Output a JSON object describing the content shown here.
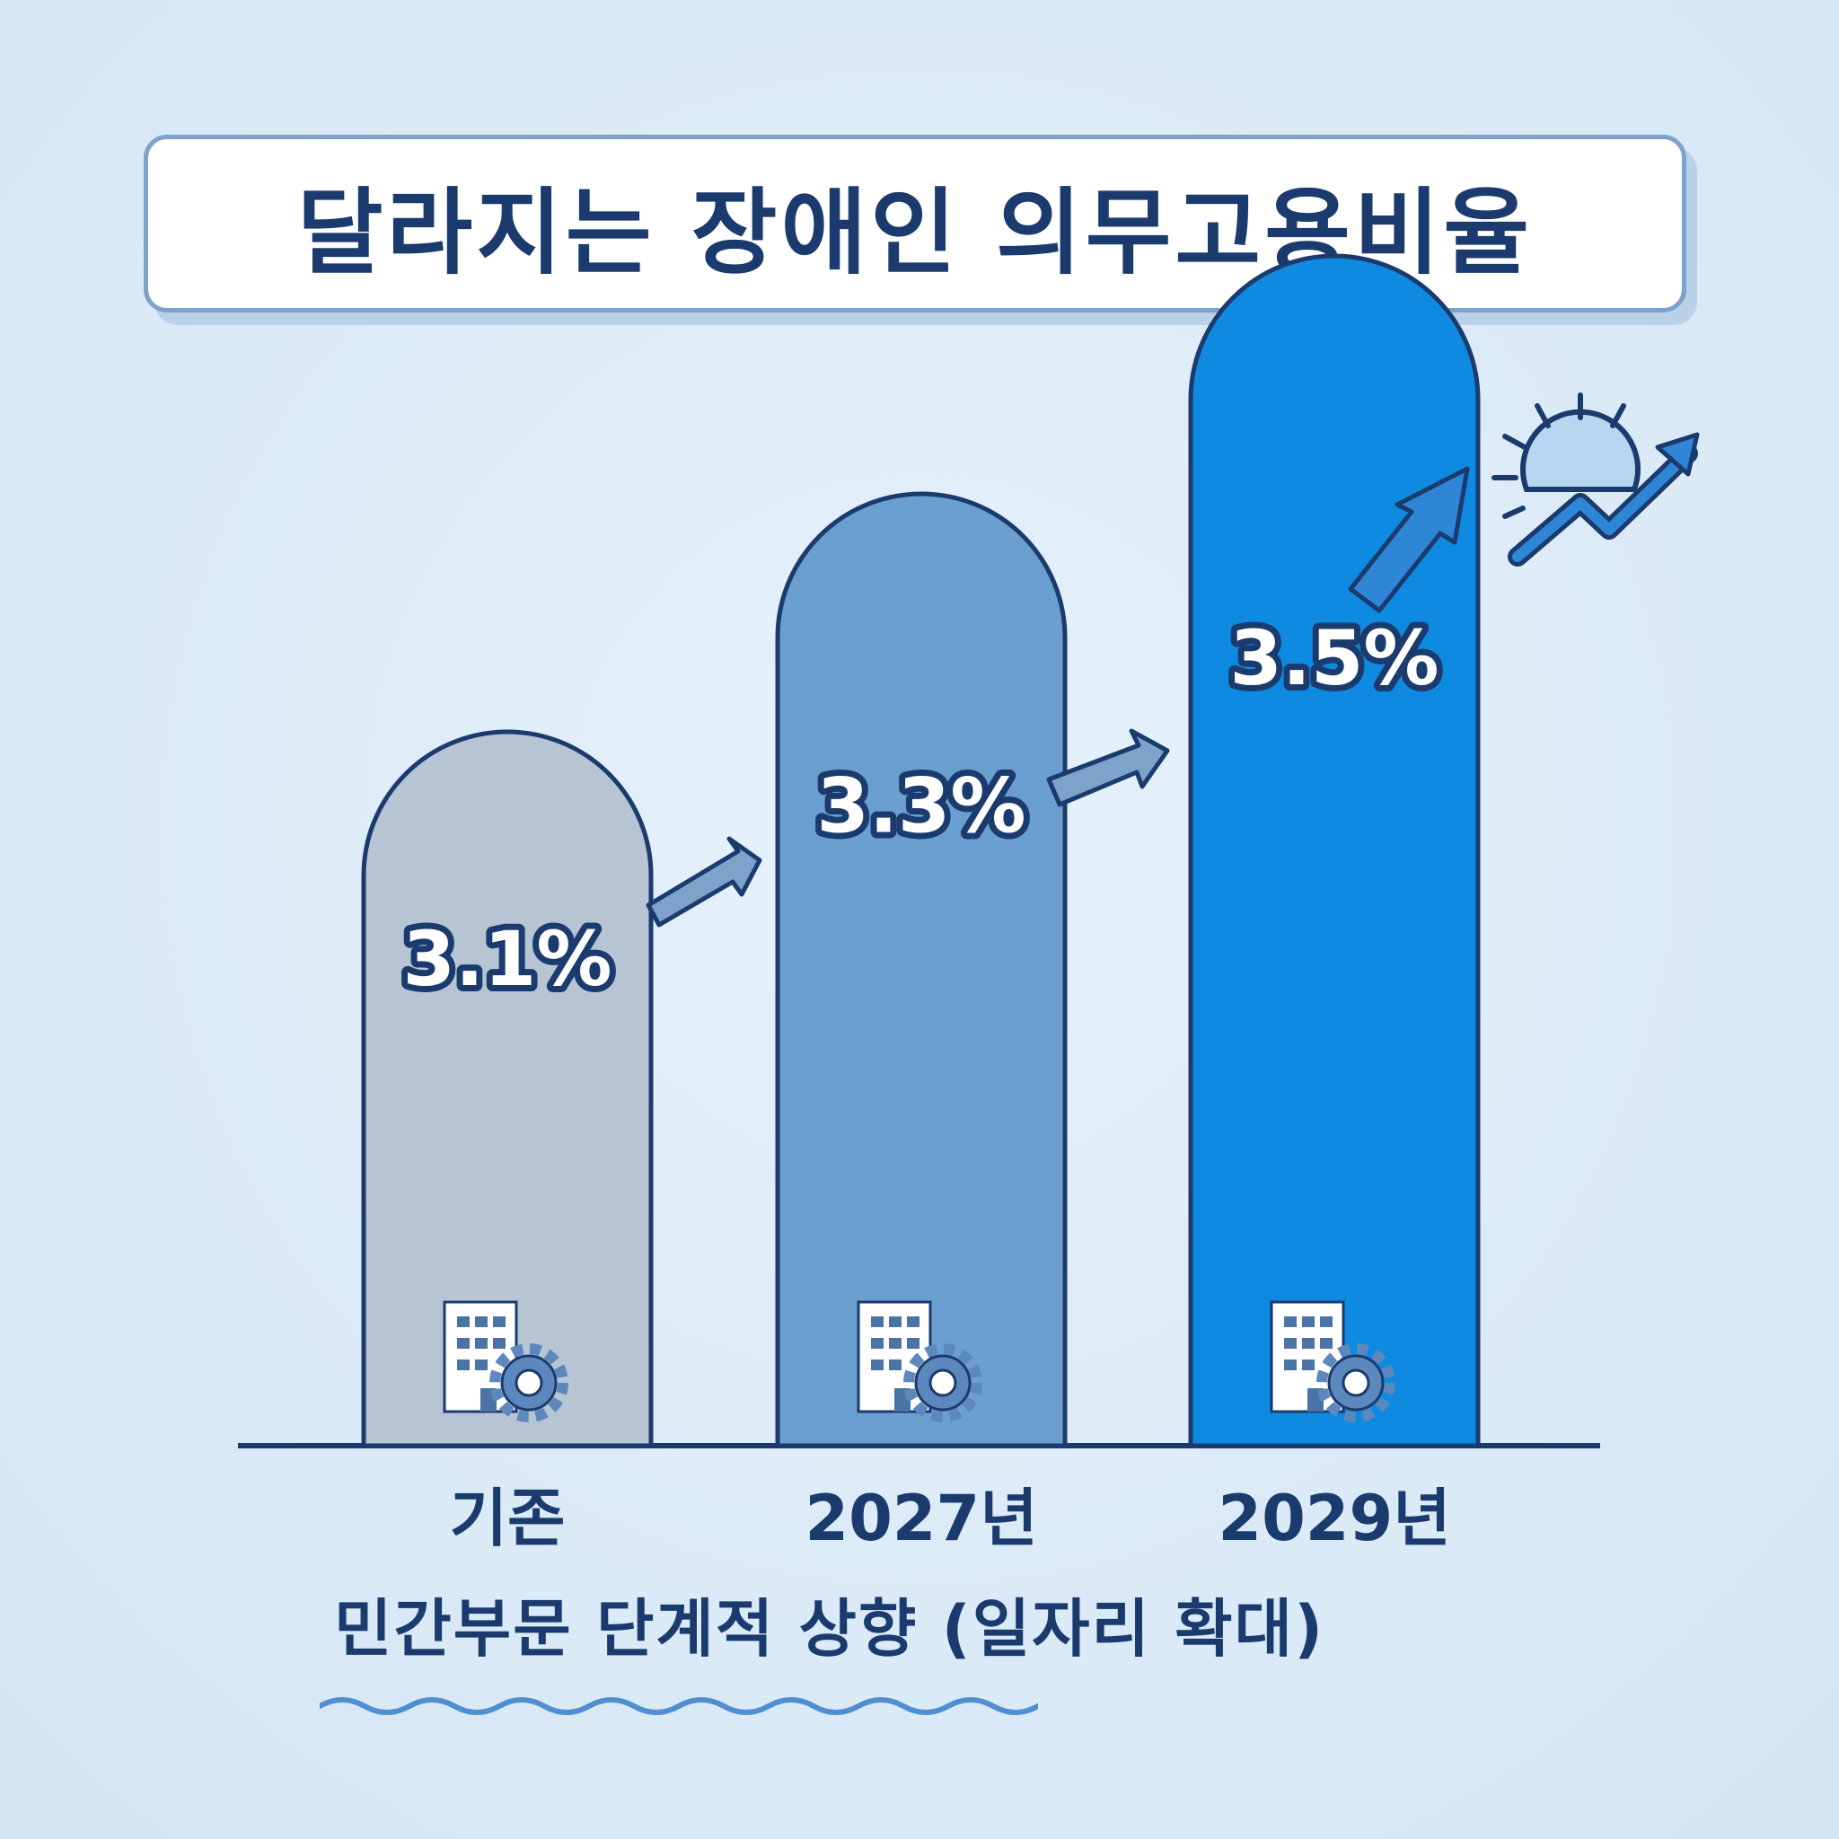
{
  "title": "달라지는 장애인 의무고용비율",
  "subtitle": "민간부문 단계적 상향 (일자리 확대)",
  "colors": {
    "background": "#dcebf8",
    "title_text": "#1b3b6e",
    "bar_1": "#b7c4d3",
    "bar_2": "#6b9fd0",
    "bar_3": "#0e8be0",
    "outline": "#1b3b6e"
  },
  "icons": {
    "bar_icon": "building-gear-icon",
    "growth_icon": "sun-trend-arrow-icon",
    "step_arrow": "arrow-up-right-icon"
  },
  "chart_data": {
    "type": "bar",
    "title": "달라지는 장애인 의무고용비율",
    "categories": [
      "기존",
      "2027년",
      "2029년"
    ],
    "values": [
      3.1,
      3.3,
      3.5
    ],
    "value_labels": [
      "3.1%",
      "3.3%",
      "3.5%"
    ],
    "unit": "%"
  }
}
